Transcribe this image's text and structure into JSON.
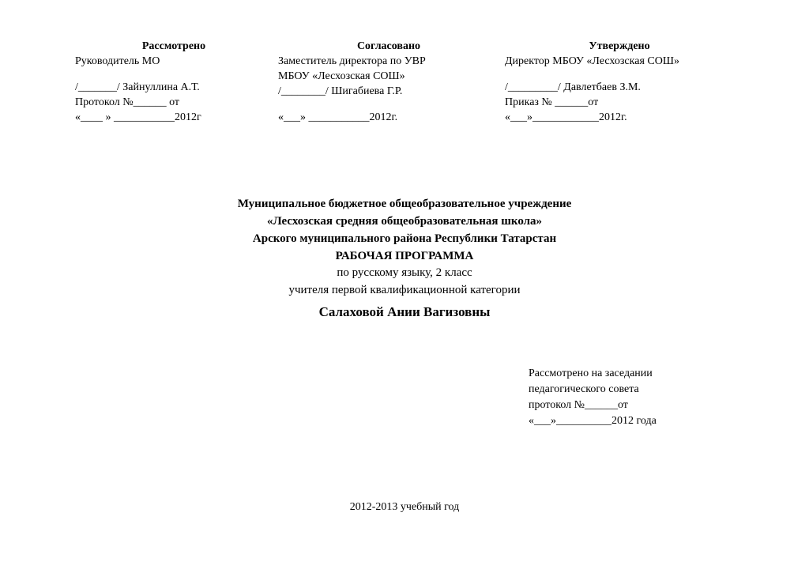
{
  "approvals": {
    "left": {
      "header": "Рассмотрено",
      "role": "Руководитель  МО",
      "sign": "/_______/  Зайнуллина А.Т.",
      "protocol": "Протокол №______   от",
      "date": "«____ » ___________2012г"
    },
    "mid": {
      "header": "Согласовано",
      "role1": "Заместитель директора  по УВР",
      "role2": "МБОУ «Лесхозская СОШ»",
      "sign": " /________/ Шигабиева Г.Р.",
      "date": "«___» ___________2012г."
    },
    "right": {
      "header": "Утверждено",
      "role": "Директор МБОУ «Лесхозская СОШ»",
      "sign": " /_________/ Давлетбаев З.М.",
      "order": " Приказ № ______от",
      "date": " «___»____________2012г."
    }
  },
  "center": {
    "line1": "Муниципальное бюджетное общеобразовательное учреждение",
    "line2": "«Лесхозская  средняя общеобразовательная школа»",
    "line3": "Арского муниципального района Республики Татарстан",
    "line4": "РАБОЧАЯ ПРОГРАММА",
    "line5": "по русскому языку, 2 класс",
    "line6": "учителя первой квалификационной категории",
    "teacher": "Салаховой Ании Вагизовны"
  },
  "meeting": {
    "l1": "Рассмотрено на заседании",
    "l2": "педагогического совета",
    "l3": " протокол №______от",
    "l4": " «___»__________2012 года"
  },
  "year": "2012-2013 учебный год"
}
